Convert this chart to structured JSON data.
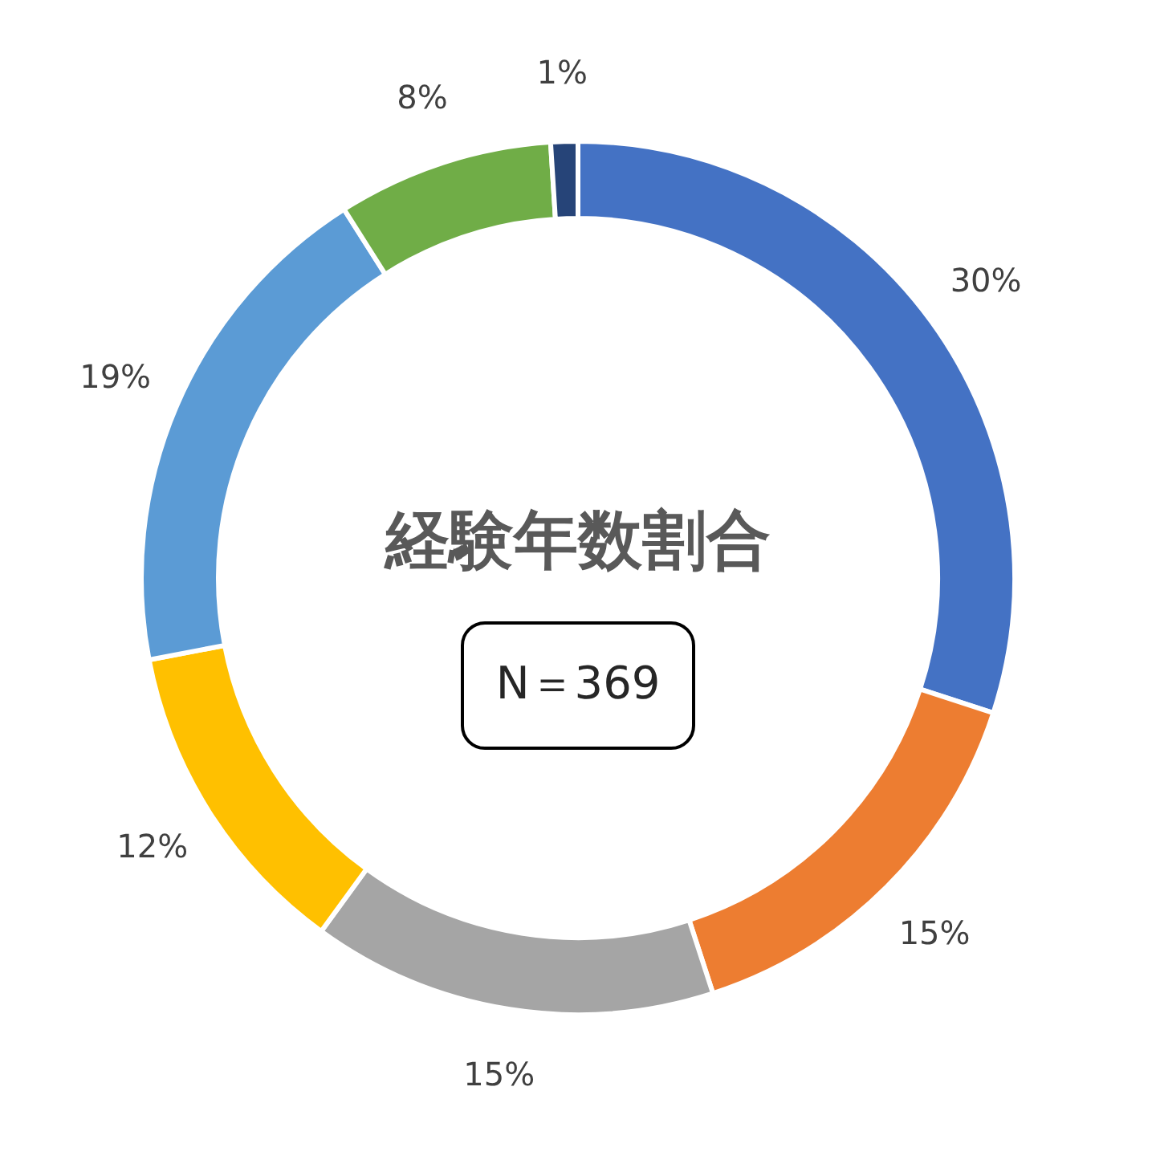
{
  "chart_data": {
    "type": "donut",
    "title": "経験年数割合",
    "annotations": [
      "N＝369"
    ],
    "categories": [
      null,
      null,
      null,
      null,
      null,
      null,
      null
    ],
    "values": [
      30,
      15,
      15,
      12,
      19,
      8,
      1
    ],
    "value_labels": [
      "30%",
      "15%",
      "15%",
      "12%",
      "19%",
      "8%",
      "1%"
    ],
    "colors": [
      "#4472c4",
      "#ed7d31",
      "#a5a5a5",
      "#ffc000",
      "#5b9bd5",
      "#70ad47",
      "#264478"
    ]
  }
}
